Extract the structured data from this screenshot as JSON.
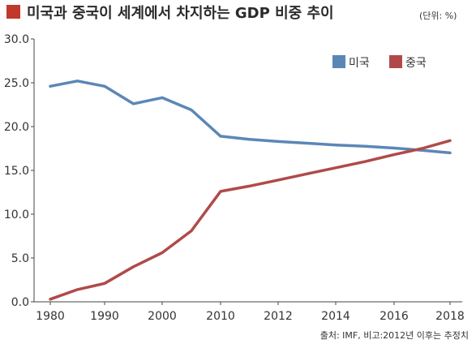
{
  "title": "미국과 중국이 세계에서 차지하는 GDP 비중 추이",
  "unit": "(단위: %)",
  "source": "출처: IMF, 비고:2012년 이후는 추정치",
  "colors": {
    "title_marker": "#c0392b",
    "usa": "#5b87b7",
    "china": "#b04a4a",
    "axis": "#444444",
    "grid": "#dddddd"
  },
  "chart_data": {
    "type": "line",
    "title": "미국과 중국이 세계에서 차지하는 GDP 비중 추이",
    "unit": "(단위: %)",
    "ylim": [
      0,
      30
    ],
    "y_ticks": [
      "0.0",
      "5.0",
      "10.0",
      "15.0",
      "20.0",
      "25.0",
      "30.0"
    ],
    "x_ticks": [
      "1980",
      "1990",
      "2000",
      "2010",
      "2012",
      "2014",
      "2016",
      "2018"
    ],
    "grid": false,
    "legend_position": "top-right",
    "series": [
      {
        "name": "미국",
        "color": "#5b87b7",
        "points": [
          {
            "x": 1980,
            "y": 24.6
          },
          {
            "x": 1985,
            "y": 25.2
          },
          {
            "x": 1990,
            "y": 24.6
          },
          {
            "x": 1995,
            "y": 22.6
          },
          {
            "x": 2000,
            "y": 23.3
          },
          {
            "x": 2005,
            "y": 21.9
          },
          {
            "x": 2010,
            "y": 18.9
          },
          {
            "x": 2011,
            "y": 18.55
          },
          {
            "x": 2012,
            "y": 18.3
          },
          {
            "x": 2013,
            "y": 18.1
          },
          {
            "x": 2014,
            "y": 17.9
          },
          {
            "x": 2015,
            "y": 17.75
          },
          {
            "x": 2016,
            "y": 17.55
          },
          {
            "x": 2017,
            "y": 17.3
          },
          {
            "x": 2018,
            "y": 17.0
          }
        ]
      },
      {
        "name": "중국",
        "color": "#b04a4a",
        "points": [
          {
            "x": 1980,
            "y": 0.3
          },
          {
            "x": 1985,
            "y": 1.4
          },
          {
            "x": 1990,
            "y": 2.1
          },
          {
            "x": 1995,
            "y": 4.0
          },
          {
            "x": 2000,
            "y": 5.6
          },
          {
            "x": 2005,
            "y": 8.1
          },
          {
            "x": 2010,
            "y": 12.6
          },
          {
            "x": 2011,
            "y": 13.2
          },
          {
            "x": 2012,
            "y": 13.9
          },
          {
            "x": 2013,
            "y": 14.6
          },
          {
            "x": 2014,
            "y": 15.3
          },
          {
            "x": 2015,
            "y": 16.0
          },
          {
            "x": 2016,
            "y": 16.8
          },
          {
            "x": 2017,
            "y": 17.5
          },
          {
            "x": 2018,
            "y": 18.4
          }
        ]
      }
    ]
  }
}
